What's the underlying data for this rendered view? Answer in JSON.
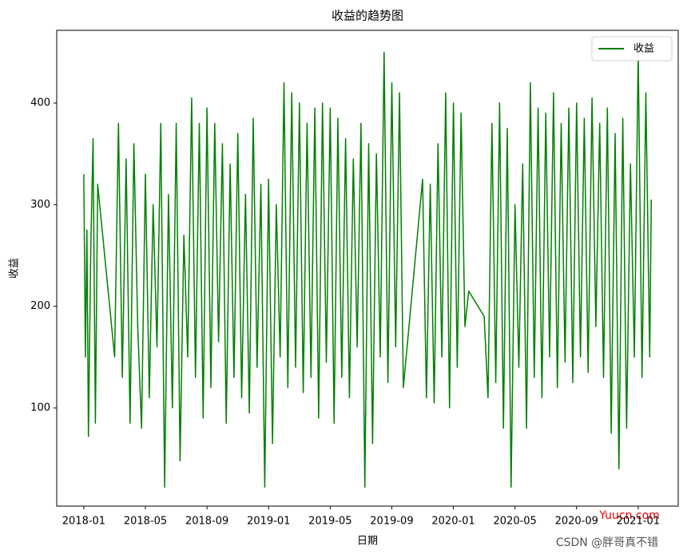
{
  "chart_data": {
    "type": "line",
    "title": "收益的趋势图",
    "x_label": "日期",
    "y_label": "收益",
    "x": [
      0,
      0.1,
      0.2,
      0.3,
      0.45,
      0.6,
      0.75,
      0.9,
      2.0,
      2.25,
      2.5,
      2.75,
      3.0,
      3.25,
      3.5,
      3.75,
      4.0,
      4.25,
      4.5,
      4.75,
      5.0,
      5.25,
      5.5,
      5.75,
      6.0,
      6.25,
      6.5,
      6.75,
      7.0,
      7.25,
      7.5,
      7.75,
      8.0,
      8.25,
      8.5,
      8.75,
      9.0,
      9.25,
      9.5,
      9.75,
      10.0,
      10.25,
      10.5,
      10.75,
      11.0,
      11.25,
      11.5,
      11.75,
      12.0,
      12.25,
      12.5,
      12.75,
      13.0,
      13.25,
      13.5,
      13.75,
      14.0,
      14.25,
      14.5,
      14.75,
      15.0,
      15.25,
      15.5,
      15.75,
      16.0,
      16.25,
      16.5,
      16.75,
      17.0,
      17.25,
      17.5,
      17.75,
      18.0,
      18.25,
      18.5,
      18.75,
      19.0,
      19.25,
      19.5,
      19.75,
      20.0,
      20.25,
      20.5,
      20.75,
      22.0,
      22.25,
      22.5,
      22.75,
      23.0,
      23.25,
      23.5,
      23.75,
      24.0,
      24.25,
      24.5,
      24.75,
      25.0,
      26.0,
      26.25,
      26.5,
      26.75,
      27.0,
      27.25,
      27.5,
      27.75,
      28.0,
      28.25,
      28.5,
      28.75,
      29.0,
      29.25,
      29.5,
      29.75,
      30.0,
      30.25,
      30.5,
      30.75,
      31.0,
      31.25,
      31.5,
      31.75,
      32.0,
      32.25,
      32.5,
      32.75,
      33.0,
      33.25,
      33.5,
      33.75,
      34.0,
      34.25,
      34.5,
      34.75,
      35.0,
      35.25,
      35.5,
      35.75,
      36.0,
      36.25,
      36.5,
      36.75,
      36.85
    ],
    "series": [
      {
        "name": "收益",
        "color": "green",
        "values": [
          330,
          150,
          275,
          72,
          255,
          365,
          85,
          320,
          150,
          380,
          130,
          345,
          85,
          360,
          180,
          80,
          330,
          110,
          300,
          160,
          380,
          22,
          310,
          100,
          380,
          48,
          270,
          150,
          405,
          130,
          380,
          90,
          395,
          120,
          380,
          165,
          360,
          85,
          340,
          130,
          370,
          110,
          310,
          95,
          385,
          140,
          320,
          22,
          325,
          65,
          300,
          150,
          420,
          120,
          410,
          140,
          400,
          115,
          380,
          130,
          395,
          90,
          400,
          145,
          395,
          85,
          385,
          130,
          365,
          110,
          345,
          160,
          380,
          22,
          360,
          65,
          350,
          150,
          450,
          125,
          420,
          160,
          410,
          120,
          325,
          110,
          320,
          105,
          360,
          150,
          410,
          100,
          400,
          140,
          390,
          180,
          215,
          190,
          110,
          380,
          125,
          400,
          80,
          375,
          22,
          300,
          140,
          340,
          80,
          420,
          130,
          395,
          110,
          390,
          150,
          410,
          120,
          380,
          145,
          395,
          125,
          400,
          150,
          385,
          135,
          405,
          180,
          380,
          130,
          395,
          75,
          370,
          40,
          385,
          80,
          340,
          150,
          450,
          130,
          410,
          150,
          305
        ]
      }
    ],
    "xlim": [
      -1.76,
      38.6
    ],
    "ylim": [
      3.4,
      471.5
    ],
    "xticks": [
      {
        "value": 0,
        "label": "2018-01"
      },
      {
        "value": 4,
        "label": "2018-05"
      },
      {
        "value": 8,
        "label": "2018-09"
      },
      {
        "value": 12,
        "label": "2019-01"
      },
      {
        "value": 16,
        "label": "2019-05"
      },
      {
        "value": 20,
        "label": "2019-09"
      },
      {
        "value": 24,
        "label": "2020-01"
      },
      {
        "value": 28,
        "label": "2020-05"
      },
      {
        "value": 32,
        "label": "2020-09"
      },
      {
        "value": 36,
        "label": "2021-01"
      }
    ],
    "yticks": [
      100,
      200,
      300,
      400
    ],
    "legend": "upper right",
    "watermarks": [
      "Yuucn.com",
      "CSDN @胖哥真不错"
    ]
  }
}
